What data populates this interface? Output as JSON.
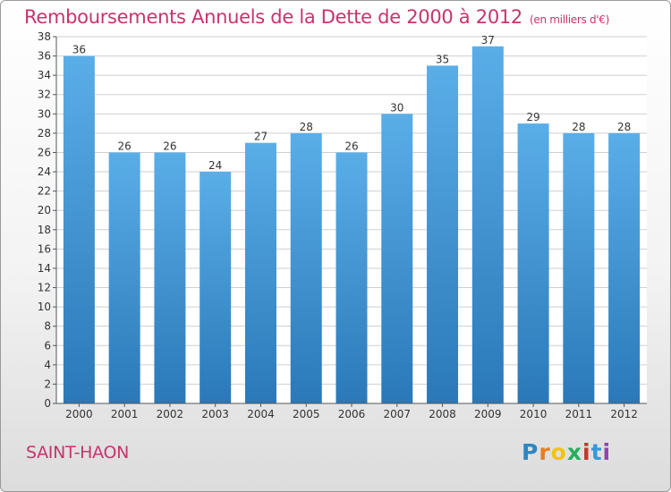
{
  "title": "Remboursements Annuels de la Dette de 2000 à 2012",
  "subtitle": "(en milliers d'€)",
  "commune": "SAINT-HAON",
  "logo": {
    "text": "Proxiti",
    "letters": [
      "P",
      "r",
      "o",
      "x",
      "i",
      "t",
      "i"
    ],
    "colors": [
      "#2e86c1",
      "#e67e22",
      "#f1c40f",
      "#27ae60",
      "#c0392b",
      "#3498db",
      "#8e44ad"
    ]
  },
  "colors": {
    "title": "#c8336e",
    "bar_top": "#5aaee8",
    "bar_bottom": "#2a78b8",
    "grid": "#cfcfcf"
  },
  "chart_data": {
    "type": "bar",
    "title": "Remboursements Annuels de la Dette de 2000 à 2012",
    "xlabel": "",
    "ylabel": "",
    "ylim": [
      0,
      38
    ],
    "yticks": [
      0,
      2,
      4,
      6,
      8,
      10,
      12,
      14,
      16,
      18,
      20,
      22,
      24,
      26,
      28,
      30,
      32,
      34,
      36,
      38
    ],
    "categories": [
      "2000",
      "2001",
      "2002",
      "2003",
      "2004",
      "2005",
      "2006",
      "2007",
      "2008",
      "2009",
      "2010",
      "2011",
      "2012"
    ],
    "values": [
      36,
      26,
      26,
      24,
      27,
      28,
      26,
      30,
      35,
      37,
      29,
      28,
      28
    ],
    "grid": true,
    "legend": "none"
  }
}
